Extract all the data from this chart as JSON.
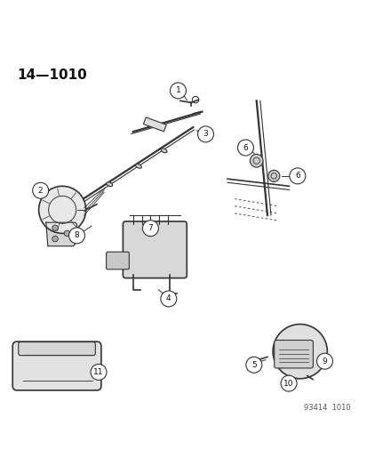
{
  "title": "14—1010",
  "footer": "93414  1010",
  "bg_color": "#ffffff",
  "line_color": "#333333",
  "label_color": "#111111",
  "fig_width": 4.14,
  "fig_height": 5.33,
  "dpi": 100
}
